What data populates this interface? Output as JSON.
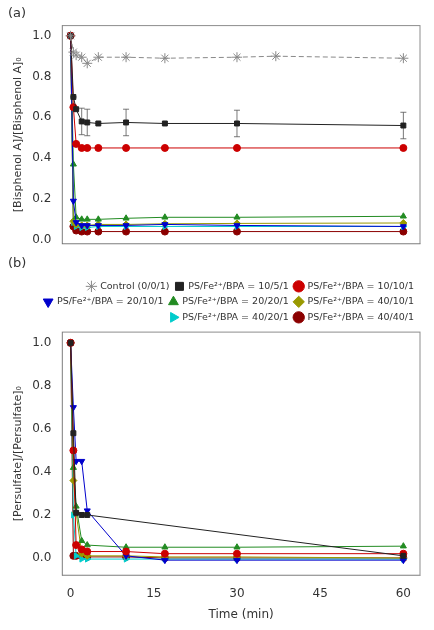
{
  "chart_data": [
    {
      "type": "line",
      "title": "(a)",
      "ylabel": "[Bisphenol A]/[Bisphenol A]₀",
      "xlim": [
        -1.5,
        63
      ],
      "xticks": [
        0,
        15,
        30,
        45,
        60
      ],
      "ylim": [
        -0.02,
        1.05
      ],
      "yticks": [
        {
          "value": 0.0,
          "label": "0.0"
        },
        0.2,
        0.4,
        0.6,
        0.8,
        {
          "value": 1.0,
          "label": "1.0"
        }
      ],
      "grid": false,
      "tick_labels": "y",
      "series": [
        {
          "name": "Control (0/0/1)",
          "color": "#888888",
          "marker": "star",
          "line_style": "dashed",
          "x": [
            0,
            0.5,
            1,
            2,
            3,
            5,
            10,
            17,
            30,
            37,
            60
          ],
          "values": [
            1.0,
            0.92,
            0.905,
            0.895,
            0.865,
            0.895,
            0.895,
            0.89,
            0.895,
            0.9,
            0.89
          ]
        },
        {
          "name": "PS/Fe²⁺/BPA = 10/5/1",
          "color": "#222222",
          "marker": "square",
          "line_style": "solid",
          "x": [
            0,
            0.5,
            1,
            2,
            3,
            5,
            10,
            17,
            30,
            60
          ],
          "values": [
            1.0,
            0.7,
            0.64,
            0.58,
            0.575,
            0.57,
            0.575,
            0.57,
            0.57,
            0.56
          ],
          "errors": [
            0.0,
            0.0,
            0.0,
            0.065,
            0.065,
            0.0,
            0.065,
            0.0,
            0.065,
            0.065
          ]
        },
        {
          "name": "PS/Fe²⁺/BPA = 10/10/1",
          "color": "#cc0000",
          "marker": "circle",
          "line_style": "solid",
          "x": [
            0,
            0.5,
            1,
            2,
            3,
            5,
            10,
            17,
            30,
            60
          ],
          "values": [
            1.0,
            0.65,
            0.47,
            0.45,
            0.45,
            0.45,
            0.45,
            0.45,
            0.45,
            0.45
          ]
        },
        {
          "name": "PS/Fe²⁺/BPA = 20/10/1",
          "color": "#0000cc",
          "marker": "triangle_down",
          "line_style": "solid",
          "x": [
            0,
            0.5,
            1,
            2,
            3,
            5,
            10,
            17,
            30,
            60
          ],
          "values": [
            1.0,
            0.19,
            0.085,
            0.07,
            0.07,
            0.07,
            0.07,
            0.075,
            0.07,
            0.065
          ]
        },
        {
          "name": "PS/Fe²⁺/BPA = 20/20/1",
          "color": "#228B22",
          "marker": "triangle_up",
          "line_style": "solid",
          "x": [
            0,
            0.5,
            1,
            2,
            3,
            5,
            10,
            17,
            30,
            60
          ],
          "values": [
            1.0,
            0.37,
            0.11,
            0.1,
            0.1,
            0.1,
            0.105,
            0.11,
            0.11,
            0.115
          ]
        },
        {
          "name": "PS/Fe²⁺/BPA = 40/10/1",
          "color": "#999900",
          "marker": "diamond",
          "line_style": "solid",
          "x": [
            0,
            0.5,
            1,
            2,
            3,
            5,
            10,
            17,
            30,
            60
          ],
          "values": [
            1.0,
            0.09,
            0.075,
            0.07,
            0.07,
            0.075,
            0.075,
            0.078,
            0.08,
            0.082
          ]
        },
        {
          "name": "PS/Fe²⁺/BPA = 40/20/1",
          "color": "#00cccc",
          "marker": "triangle_right",
          "line_style": "solid",
          "x": [
            0,
            0.5,
            1,
            2,
            3,
            5,
            10,
            17,
            30,
            60
          ],
          "values": [
            1.0,
            0.085,
            0.065,
            0.06,
            0.06,
            0.065,
            0.065,
            0.065,
            0.065,
            0.065
          ]
        },
        {
          "name": "PS/Fe²⁺/BPA = 40/40/1",
          "color": "#8B0000",
          "marker": "circle",
          "line_style": "solid",
          "x": [
            0,
            0.5,
            1,
            2,
            3,
            5,
            10,
            17,
            30,
            60
          ],
          "values": [
            1.0,
            0.065,
            0.045,
            0.04,
            0.04,
            0.04,
            0.04,
            0.04,
            0.04,
            0.04
          ]
        }
      ]
    },
    {
      "type": "line",
      "title": "(b)",
      "xlabel": "Time (min)",
      "ylabel": "[Persulfate]/[Persulfate]₀",
      "xlim": [
        -1.5,
        63
      ],
      "xticks": [
        0,
        15,
        30,
        45,
        60
      ],
      "ylim": [
        -0.08,
        1.05
      ],
      "yticks": [
        {
          "value": 0.0,
          "label": "0.0"
        },
        0.2,
        0.4,
        0.6,
        0.8,
        {
          "value": 1.0,
          "label": "1.0"
        }
      ],
      "grid": false,
      "legend": "upper right",
      "series": [
        {
          "name": "Control (0/0/1)",
          "color": "#888888",
          "marker": "star",
          "line_style": "dashed",
          "x": [],
          "values": []
        },
        {
          "name": "PS/Fe²⁺/BPA = 10/5/1",
          "color": "#222222",
          "marker": "square",
          "line_style": "solid",
          "x": [
            0,
            0.5,
            1,
            2,
            3,
            60
          ],
          "values": [
            1.0,
            0.58,
            0.21,
            0.2,
            0.2,
            0.01
          ]
        },
        {
          "name": "PS/Fe²⁺/BPA = 10/10/1",
          "color": "#cc0000",
          "marker": "circle",
          "line_style": "solid",
          "x": [
            0,
            0.5,
            1,
            2,
            3,
            10,
            17,
            30,
            60
          ],
          "values": [
            1.0,
            0.5,
            0.06,
            0.04,
            0.03,
            0.03,
            0.02,
            0.02,
            0.02
          ]
        },
        {
          "name": "PS/Fe²⁺/BPA = 20/10/1",
          "color": "#0000cc",
          "marker": "triangle_down",
          "line_style": "solid",
          "x": [
            0,
            0.5,
            1,
            2,
            3,
            10,
            17,
            30,
            60
          ],
          "values": [
            1.0,
            0.7,
            0.45,
            0.45,
            0.22,
            0.01,
            -0.01,
            -0.01,
            -0.01
          ]
        },
        {
          "name": "PS/Fe²⁺/BPA = 20/20/1",
          "color": "#228B22",
          "marker": "triangle_up",
          "line_style": "solid",
          "x": [
            0,
            0.5,
            1,
            2,
            3,
            10,
            17,
            30,
            60
          ],
          "values": [
            1.0,
            0.42,
            0.24,
            0.08,
            0.06,
            0.05,
            0.05,
            0.05,
            0.055
          ]
        },
        {
          "name": "PS/Fe²⁺/BPA = 40/10/1",
          "color": "#999900",
          "marker": "diamond",
          "line_style": "solid",
          "x": [
            0,
            0.5,
            1,
            2,
            3,
            10,
            17,
            30,
            60
          ],
          "values": [
            1.0,
            0.36,
            0.21,
            0.02,
            0.01,
            0.01,
            0.005,
            0.005,
            0.0
          ]
        },
        {
          "name": "PS/Fe²⁺/BPA = 40/20/1",
          "color": "#00cccc",
          "marker": "triangle_right",
          "line_style": "solid",
          "x": [
            0,
            0.5,
            1,
            2,
            3,
            10,
            17,
            30,
            60
          ],
          "values": [
            1.0,
            0.2,
            0.01,
            -0.005,
            -0.005,
            -0.005,
            -0.005,
            -0.005,
            -0.005
          ]
        },
        {
          "name": "PS/Fe²⁺/BPA = 40/40/1",
          "color": "#8B0000",
          "marker": "circle",
          "line_style": "solid",
          "x": [
            0,
            0.5,
            1,
            2,
            3,
            10,
            17,
            30,
            60
          ],
          "values": [
            1.0,
            0.01,
            0.01,
            0.01,
            0.005,
            0.005,
            0.0,
            0.0,
            0.0
          ]
        }
      ]
    }
  ]
}
